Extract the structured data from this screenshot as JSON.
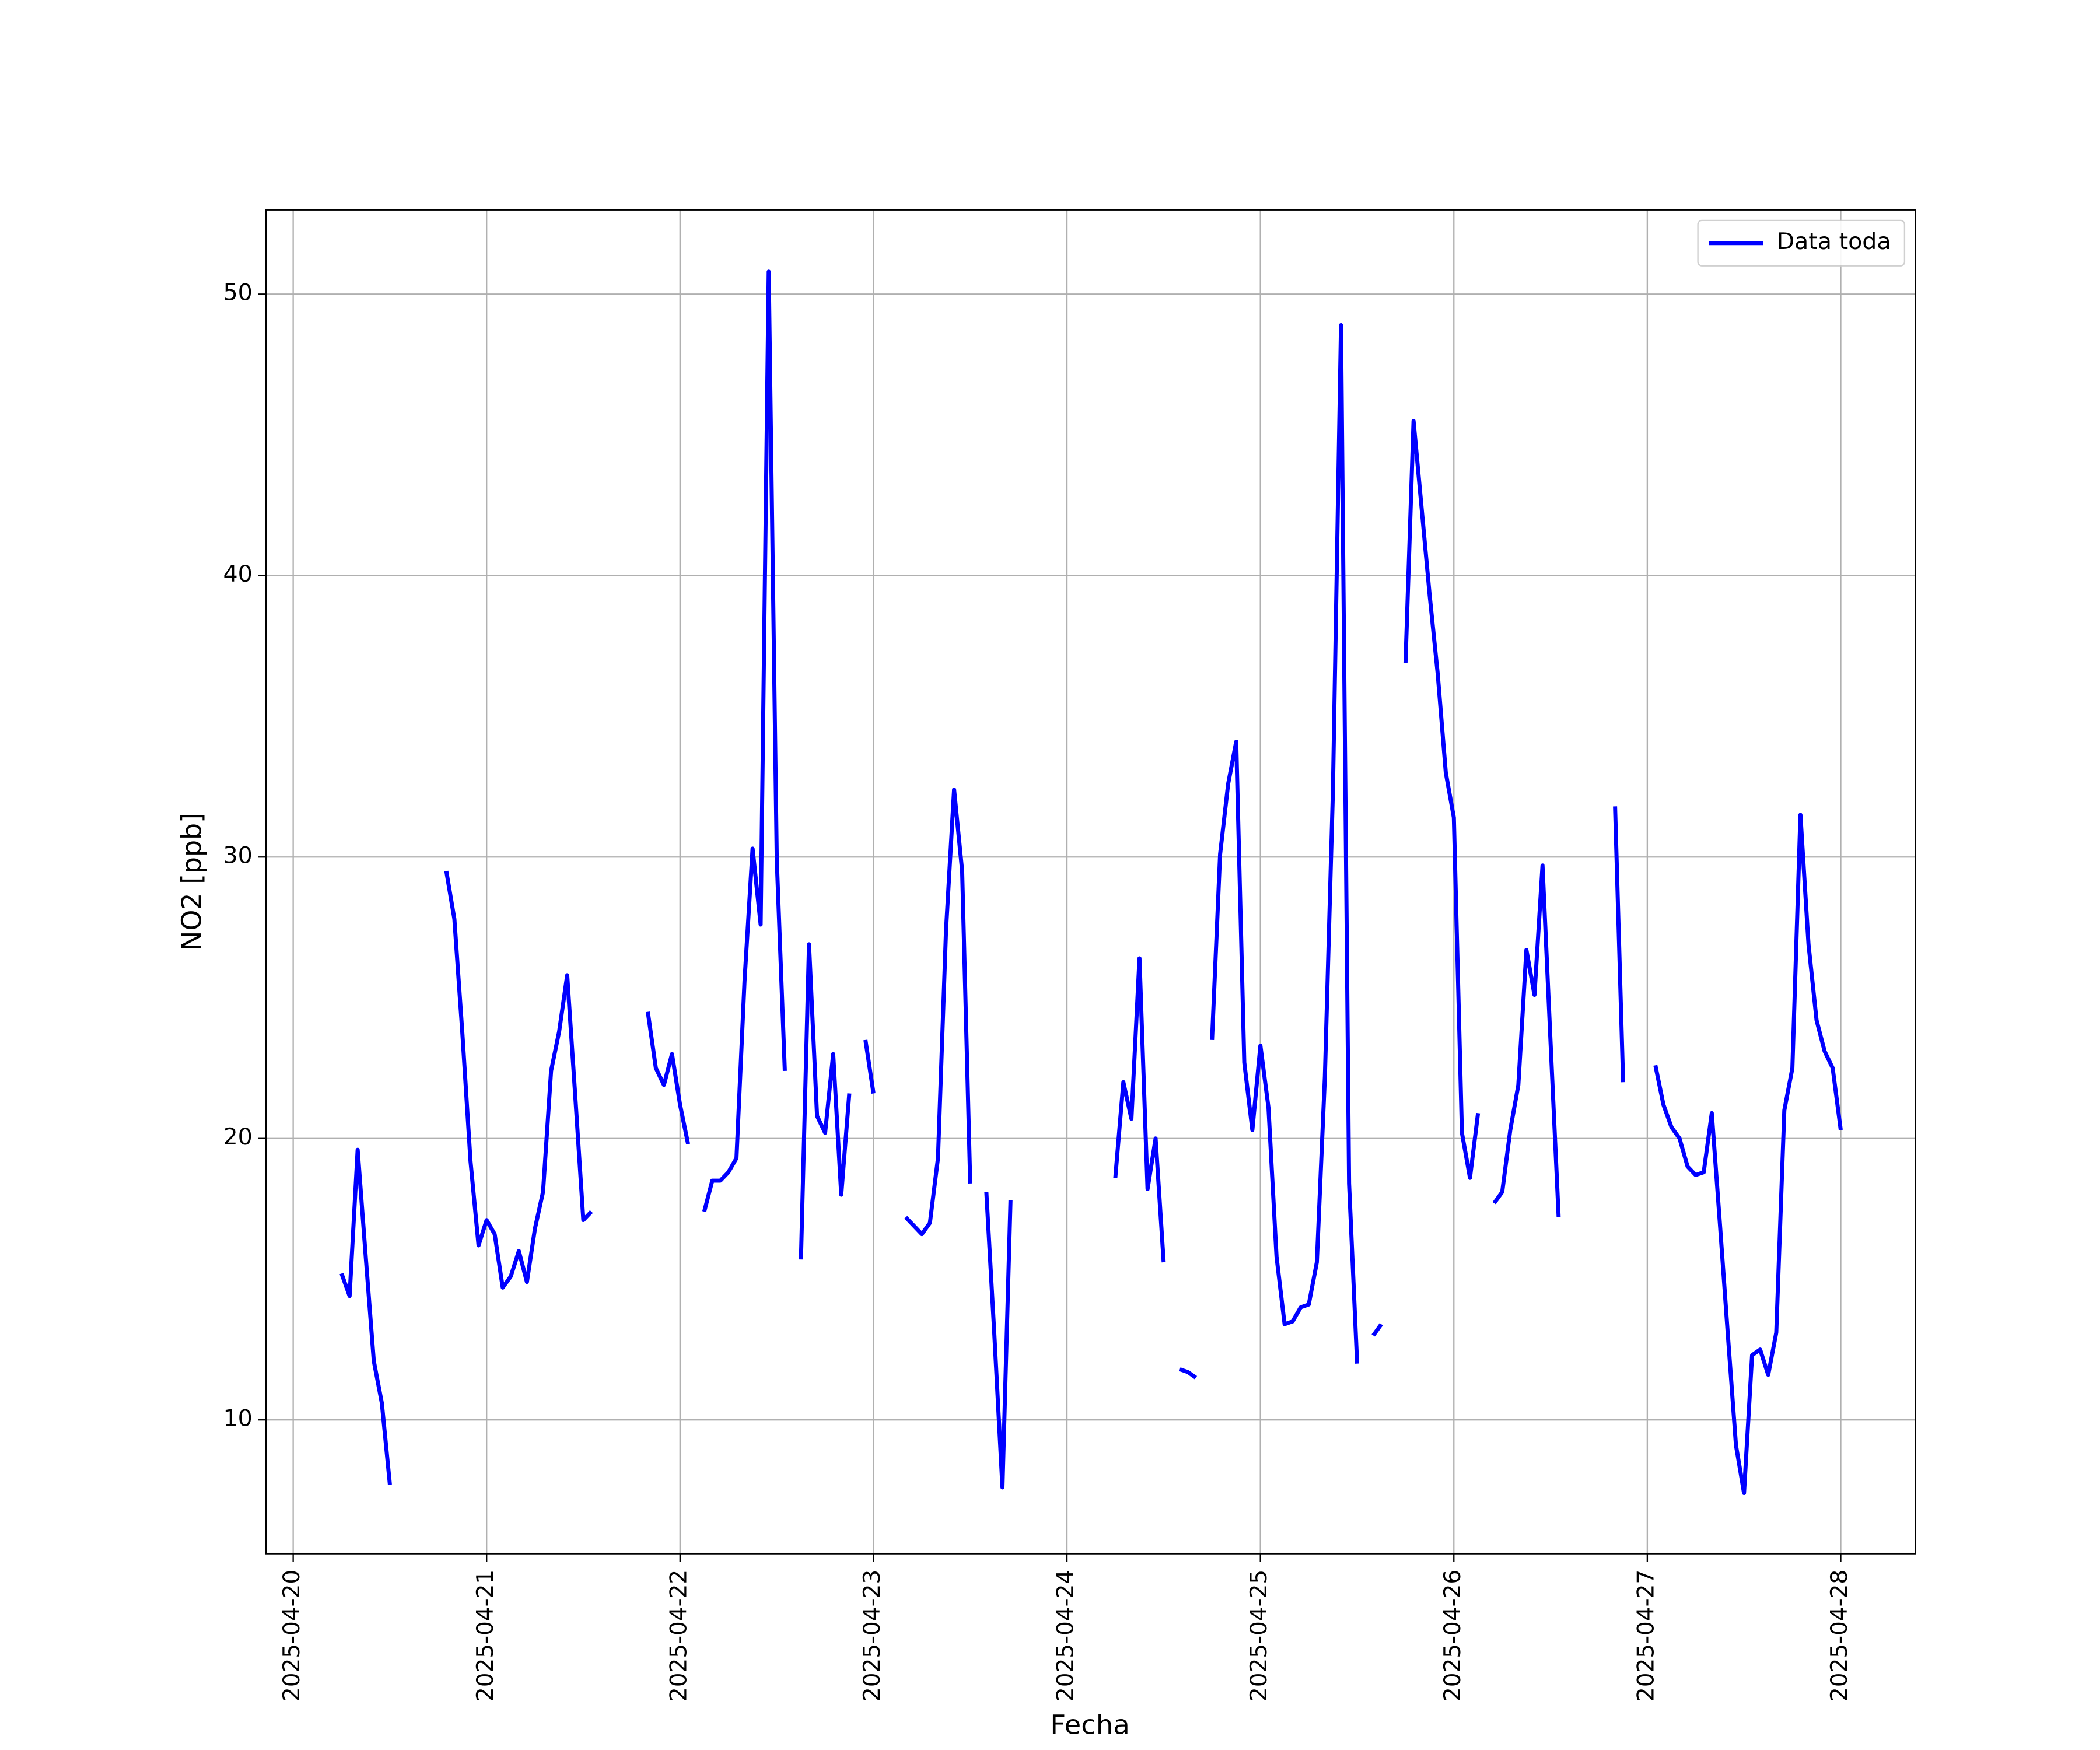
{
  "chart_data": {
    "type": "line",
    "xlabel": "Fecha",
    "ylabel": "NO2 [ppb]",
    "xlim": [
      "2025-04-19T20:38",
      "2025-04-28T09:16"
    ],
    "xticks": [
      "2025-04-20",
      "2025-04-21",
      "2025-04-22",
      "2025-04-23",
      "2025-04-24",
      "2025-04-25",
      "2025-04-26",
      "2025-04-27",
      "2025-04-28"
    ],
    "ylim": [
      5.25,
      53.0
    ],
    "yticks": [
      10,
      20,
      30,
      40,
      50
    ],
    "grid": true,
    "legend": "upper right",
    "x": [
      "2025-04-20T06:00",
      "2025-04-20T07:00",
      "2025-04-20T08:00",
      "2025-04-20T09:00",
      "2025-04-20T10:00",
      "2025-04-20T11:00",
      "2025-04-20T12:00",
      "2025-04-20T13:00",
      "2025-04-20T19:00",
      "2025-04-20T20:00",
      "2025-04-20T21:00",
      "2025-04-20T22:00",
      "2025-04-20T23:00",
      "2025-04-21T00:00",
      "2025-04-21T01:00",
      "2025-04-21T02:00",
      "2025-04-21T03:00",
      "2025-04-21T04:00",
      "2025-04-21T05:00",
      "2025-04-21T06:00",
      "2025-04-21T07:00",
      "2025-04-21T08:00",
      "2025-04-21T09:00",
      "2025-04-21T10:00",
      "2025-04-21T11:00",
      "2025-04-21T12:00",
      "2025-04-21T13:00",
      "2025-04-21T14:00",
      "2025-04-21T20:00",
      "2025-04-21T21:00",
      "2025-04-21T22:00",
      "2025-04-21T23:00",
      "2025-04-22T00:00",
      "2025-04-22T01:00",
      "2025-04-22T02:00",
      "2025-04-22T03:00",
      "2025-04-22T04:00",
      "2025-04-22T05:00",
      "2025-04-22T06:00",
      "2025-04-22T07:00",
      "2025-04-22T08:00",
      "2025-04-22T09:00",
      "2025-04-22T10:00",
      "2025-04-22T11:00",
      "2025-04-22T12:00",
      "2025-04-22T13:00",
      "2025-04-22T14:00",
      "2025-04-22T15:00",
      "2025-04-22T16:00",
      "2025-04-22T17:00",
      "2025-04-22T18:00",
      "2025-04-22T19:00",
      "2025-04-22T20:00",
      "2025-04-22T21:00",
      "2025-04-22T22:00",
      "2025-04-22T23:00",
      "2025-04-23T00:00",
      "2025-04-23T01:00",
      "2025-04-23T04:00",
      "2025-04-23T05:00",
      "2025-04-23T06:00",
      "2025-04-23T07:00",
      "2025-04-23T08:00",
      "2025-04-23T09:00",
      "2025-04-23T10:00",
      "2025-04-23T11:00",
      "2025-04-23T12:00",
      "2025-04-23T13:00",
      "2025-04-23T14:00",
      "2025-04-23T15:00",
      "2025-04-23T16:00",
      "2025-04-23T17:00",
      "2025-04-23T18:00",
      "2025-04-24T06:00",
      "2025-04-24T07:00",
      "2025-04-24T08:00",
      "2025-04-24T09:00",
      "2025-04-24T10:00",
      "2025-04-24T11:00",
      "2025-04-24T12:00",
      "2025-04-24T13:00",
      "2025-04-24T14:00",
      "2025-04-24T15:00",
      "2025-04-24T16:00",
      "2025-04-24T17:00",
      "2025-04-24T18:00",
      "2025-04-24T19:00",
      "2025-04-24T20:00",
      "2025-04-24T21:00",
      "2025-04-24T22:00",
      "2025-04-24T23:00",
      "2025-04-25T00:00",
      "2025-04-25T01:00",
      "2025-04-25T02:00",
      "2025-04-25T03:00",
      "2025-04-25T04:00",
      "2025-04-25T05:00",
      "2025-04-25T06:00",
      "2025-04-25T07:00",
      "2025-04-25T08:00",
      "2025-04-25T09:00",
      "2025-04-25T10:00",
      "2025-04-25T11:00",
      "2025-04-25T12:00",
      "2025-04-25T13:00",
      "2025-04-25T14:00",
      "2025-04-25T15:00",
      "2025-04-25T16:00",
      "2025-04-25T18:00",
      "2025-04-25T19:00",
      "2025-04-25T20:00",
      "2025-04-25T21:00",
      "2025-04-25T22:00",
      "2025-04-25T23:00",
      "2025-04-26T00:00",
      "2025-04-26T01:00",
      "2025-04-26T02:00",
      "2025-04-26T03:00",
      "2025-04-26T04:00",
      "2025-04-26T05:00",
      "2025-04-26T06:00",
      "2025-04-26T07:00",
      "2025-04-26T08:00",
      "2025-04-26T09:00",
      "2025-04-26T10:00",
      "2025-04-26T11:00",
      "2025-04-26T12:00",
      "2025-04-26T13:00",
      "2025-04-26T14:00",
      "2025-04-26T20:00",
      "2025-04-26T21:00",
      "2025-04-26T22:00",
      "2025-04-27T01:00",
      "2025-04-27T02:00",
      "2025-04-27T03:00",
      "2025-04-27T04:00",
      "2025-04-27T05:00",
      "2025-04-27T06:00",
      "2025-04-27T07:00",
      "2025-04-27T08:00",
      "2025-04-27T09:00",
      "2025-04-27T10:00",
      "2025-04-27T11:00",
      "2025-04-27T12:00",
      "2025-04-27T13:00",
      "2025-04-27T14:00",
      "2025-04-27T15:00",
      "2025-04-27T16:00",
      "2025-04-27T17:00",
      "2025-04-27T18:00",
      "2025-04-27T19:00",
      "2025-04-27T20:00",
      "2025-04-27T21:00",
      "2025-04-27T22:00",
      "2025-04-27T23:00",
      "2025-04-28T00:00"
    ],
    "series": [
      {
        "name": "Data toda",
        "color": "#0000ff",
        "values": [
          15.2,
          14.4,
          19.6,
          15.8,
          12.1,
          10.6,
          7.7,
          null,
          29.5,
          27.8,
          23.7,
          19.2,
          16.2,
          17.1,
          16.6,
          14.7,
          15.1,
          16.0,
          14.9,
          16.8,
          18.1,
          22.4,
          23.8,
          25.8,
          21.5,
          17.1,
          17.4,
          null,
          24.5,
          22.5,
          21.9,
          23.0,
          21.2,
          19.8,
          null,
          17.4,
          18.5,
          18.5,
          18.8,
          19.3,
          25.6,
          30.3,
          27.6,
          50.8,
          29.9,
          22.4,
          null,
          15.7,
          26.9,
          20.8,
          20.2,
          23.0,
          18.0,
          21.6,
          null,
          23.5,
          21.6,
          null,
          17.2,
          16.9,
          16.6,
          17.0,
          19.3,
          27.4,
          32.4,
          29.5,
          18.4,
          null,
          18.1,
          13.0,
          7.6,
          17.8,
          null,
          18.6,
          22.0,
          20.7,
          26.4,
          18.2,
          20.0,
          15.6,
          null,
          11.8,
          11.7,
          11.5,
          null,
          23.5,
          30.1,
          32.6,
          34.1,
          22.7,
          20.3,
          23.3,
          21.1,
          15.8,
          13.4,
          13.5,
          14.0,
          14.1,
          15.6,
          22.2,
          32.4,
          48.9,
          18.4,
          12.0,
          null,
          13.0,
          13.4,
          null,
          36.9,
          45.5,
          42.4,
          39.3,
          36.5,
          33.0,
          31.4,
          20.2,
          18.6,
          20.9,
          null,
          17.7,
          18.1,
          20.3,
          21.9,
          26.7,
          25.1,
          29.7,
          23.4,
          17.2,
          null,
          31.8,
          22.0,
          null,
          22.6,
          21.2,
          20.4,
          20.0,
          19.0,
          18.7,
          18.8,
          20.9,
          17.0,
          13.0,
          9.1,
          7.4,
          12.3,
          12.5,
          11.6,
          13.1,
          21.0,
          22.5,
          31.5,
          26.9,
          24.2,
          23.1,
          22.5,
          20.3
        ]
      }
    ]
  }
}
